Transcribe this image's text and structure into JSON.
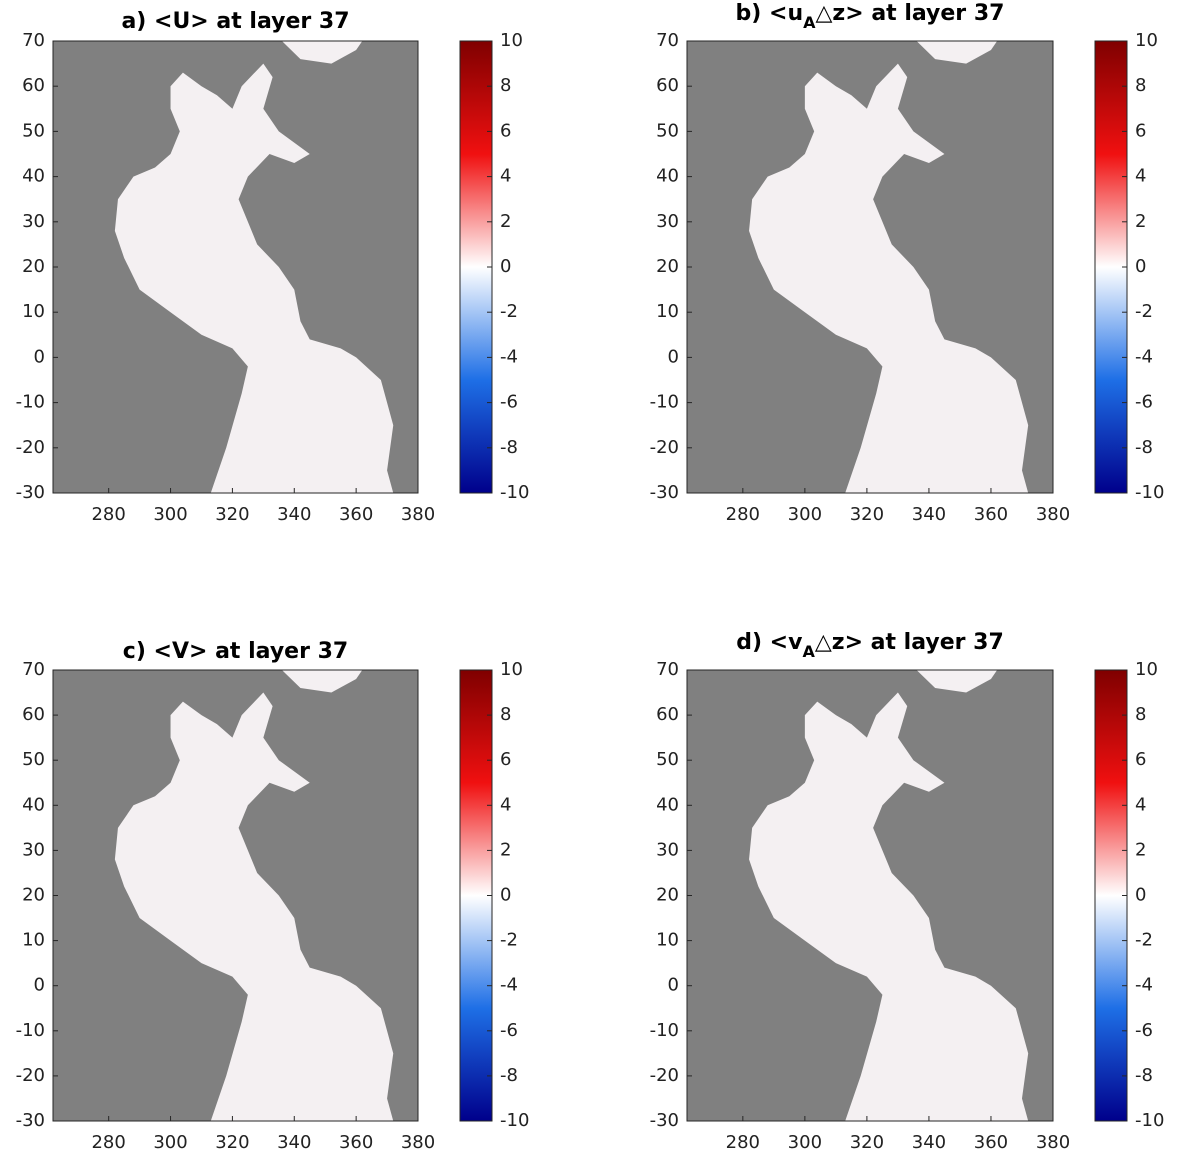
{
  "chart_data": [
    {
      "type": "heatmap",
      "title": [
        {
          "text": "a) <U> at layer 37"
        }
      ],
      "xlim": [
        262,
        380
      ],
      "ylim": [
        -30,
        70
      ],
      "xticks": [
        280,
        300,
        320,
        340,
        360,
        380
      ],
      "yticks": [
        -30,
        -20,
        -10,
        0,
        10,
        20,
        30,
        40,
        50,
        60,
        70
      ],
      "land_color": "#808080",
      "colorbar": {
        "clim": [
          -10,
          10
        ],
        "ticks": [
          -10,
          -8,
          -6,
          -4,
          -2,
          0,
          2,
          4,
          6,
          8,
          10
        ],
        "colors": [
          "#00008b",
          "#1e6fe6",
          "#ffffff",
          "#f01010",
          "#7f0000"
        ]
      }
    },
    {
      "type": "heatmap",
      "title": [
        {
          "text": "b) <u"
        },
        {
          "text": "A",
          "sub": true
        },
        {
          "text": "△z> at layer 37"
        }
      ],
      "xlim": [
        262,
        380
      ],
      "ylim": [
        -30,
        70
      ],
      "xticks": [
        280,
        300,
        320,
        340,
        360,
        380
      ],
      "yticks": [
        -30,
        -20,
        -10,
        0,
        10,
        20,
        30,
        40,
        50,
        60,
        70
      ],
      "land_color": "#808080",
      "colorbar": {
        "clim": [
          -10,
          10
        ],
        "ticks": [
          -10,
          -8,
          -6,
          -4,
          -2,
          0,
          2,
          4,
          6,
          8,
          10
        ],
        "colors": [
          "#00008b",
          "#1e6fe6",
          "#ffffff",
          "#f01010",
          "#7f0000"
        ]
      }
    },
    {
      "type": "heatmap",
      "title": [
        {
          "text": "c) <V> at layer 37"
        }
      ],
      "xlim": [
        262,
        380
      ],
      "ylim": [
        -30,
        70
      ],
      "xticks": [
        280,
        300,
        320,
        340,
        360,
        380
      ],
      "yticks": [
        -30,
        -20,
        -10,
        0,
        10,
        20,
        30,
        40,
        50,
        60,
        70
      ],
      "land_color": "#808080",
      "colorbar": {
        "clim": [
          -10,
          10
        ],
        "ticks": [
          -10,
          -8,
          -6,
          -4,
          -2,
          0,
          2,
          4,
          6,
          8,
          10
        ],
        "colors": [
          "#00008b",
          "#1e6fe6",
          "#ffffff",
          "#f01010",
          "#7f0000"
        ]
      }
    },
    {
      "type": "heatmap",
      "title": [
        {
          "text": "d) <v"
        },
        {
          "text": "A",
          "sub": true
        },
        {
          "text": "△z> at layer 37"
        }
      ],
      "xlim": [
        262,
        380
      ],
      "ylim": [
        -30,
        70
      ],
      "xticks": [
        280,
        300,
        320,
        340,
        360,
        380
      ],
      "yticks": [
        -30,
        -20,
        -10,
        0,
        10,
        20,
        30,
        40,
        50,
        60,
        70
      ],
      "land_color": "#808080",
      "colorbar": {
        "clim": [
          -10,
          10
        ],
        "ticks": [
          -10,
          -8,
          -6,
          -4,
          -2,
          0,
          2,
          4,
          6,
          8,
          10
        ],
        "colors": [
          "#00008b",
          "#1e6fe6",
          "#ffffff",
          "#f01010",
          "#7f0000"
        ]
      }
    }
  ]
}
